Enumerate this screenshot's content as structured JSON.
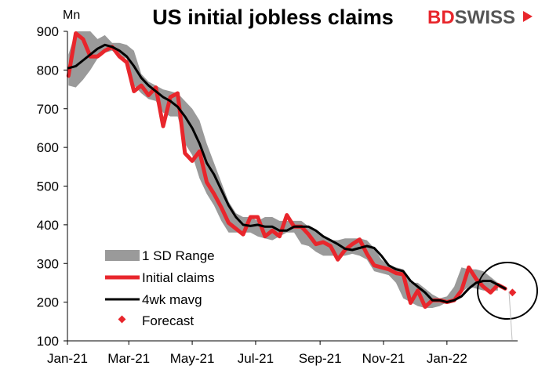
{
  "brand": {
    "part1": "BD",
    "part2": "SWISS",
    "color": "#e8262c"
  },
  "chart_data": {
    "type": "line",
    "title": "US initial jobless claims",
    "ylabel": "Mn",
    "ylim": [
      100,
      900
    ],
    "yticks": [
      100,
      200,
      300,
      400,
      500,
      600,
      700,
      800,
      900
    ],
    "xlim": [
      "2021-01-01",
      "2022-03-10"
    ],
    "xticks": [
      {
        "date": "2021-01-01",
        "label": "Jan-21"
      },
      {
        "date": "2021-03-01",
        "label": "Mar-21"
      },
      {
        "date": "2021-05-01",
        "label": "May-21"
      },
      {
        "date": "2021-07-01",
        "label": "Jul-21"
      },
      {
        "date": "2021-09-01",
        "label": "Sep-21"
      },
      {
        "date": "2021-11-01",
        "label": "Nov-21"
      },
      {
        "date": "2022-01-01",
        "label": "Jan-22"
      }
    ],
    "grid": false,
    "legend_position": "bottom-left",
    "colors": {
      "range": "#9a9a9a",
      "claims": "#e8262c",
      "mavg": "#000000",
      "forecast": "#e8262c"
    },
    "series": [
      {
        "name": "1 SD Range",
        "kind": "band",
        "points": [
          [
            "2021-01-02",
            760,
            840
          ],
          [
            "2021-01-09",
            755,
            900
          ],
          [
            "2021-01-16",
            775,
            900
          ],
          [
            "2021-01-23",
            800,
            900
          ],
          [
            "2021-01-30",
            830,
            880
          ],
          [
            "2021-02-06",
            845,
            890
          ],
          [
            "2021-02-13",
            850,
            870
          ],
          [
            "2021-02-20",
            835,
            870
          ],
          [
            "2021-02-27",
            830,
            865
          ],
          [
            "2021-03-06",
            760,
            850
          ],
          [
            "2021-03-13",
            740,
            790
          ],
          [
            "2021-03-20",
            725,
            770
          ],
          [
            "2021-03-27",
            720,
            760
          ],
          [
            "2021-04-03",
            690,
            750
          ],
          [
            "2021-04-10",
            680,
            745
          ],
          [
            "2021-04-17",
            680,
            740
          ],
          [
            "2021-04-24",
            610,
            720
          ],
          [
            "2021-05-01",
            580,
            700
          ],
          [
            "2021-05-08",
            520,
            670
          ],
          [
            "2021-05-15",
            480,
            610
          ],
          [
            "2021-05-22",
            450,
            560
          ],
          [
            "2021-05-29",
            410,
            510
          ],
          [
            "2021-06-05",
            380,
            460
          ],
          [
            "2021-06-12",
            380,
            430
          ],
          [
            "2021-06-19",
            380,
            420
          ],
          [
            "2021-06-26",
            380,
            420
          ],
          [
            "2021-07-03",
            370,
            410
          ],
          [
            "2021-07-10",
            365,
            420
          ],
          [
            "2021-07-17",
            360,
            420
          ],
          [
            "2021-07-24",
            370,
            410
          ],
          [
            "2021-07-31",
            380,
            410
          ],
          [
            "2021-08-07",
            380,
            410
          ],
          [
            "2021-08-14",
            350,
            410
          ],
          [
            "2021-08-21",
            345,
            395
          ],
          [
            "2021-08-28",
            330,
            385
          ],
          [
            "2021-09-04",
            320,
            370
          ],
          [
            "2021-09-11",
            320,
            360
          ],
          [
            "2021-09-18",
            320,
            360
          ],
          [
            "2021-09-25",
            320,
            365
          ],
          [
            "2021-10-02",
            325,
            365
          ],
          [
            "2021-10-09",
            320,
            365
          ],
          [
            "2021-10-16",
            310,
            360
          ],
          [
            "2021-10-23",
            280,
            340
          ],
          [
            "2021-10-30",
            275,
            310
          ],
          [
            "2021-11-06",
            270,
            295
          ],
          [
            "2021-11-13",
            250,
            290
          ],
          [
            "2021-11-20",
            210,
            285
          ],
          [
            "2021-11-27",
            200,
            250
          ],
          [
            "2021-12-04",
            190,
            250
          ],
          [
            "2021-12-11",
            185,
            235
          ],
          [
            "2021-12-18",
            185,
            220
          ],
          [
            "2021-12-25",
            190,
            210
          ],
          [
            "2022-01-01",
            200,
            215
          ],
          [
            "2022-01-08",
            205,
            240
          ],
          [
            "2022-01-15",
            225,
            290
          ],
          [
            "2022-01-22",
            240,
            285
          ],
          [
            "2022-01-29",
            235,
            285
          ],
          [
            "2022-02-05",
            230,
            280
          ],
          [
            "2022-02-12",
            230,
            265
          ],
          [
            "2022-02-19",
            230,
            250
          ]
        ]
      },
      {
        "name": "Initial claims",
        "kind": "line",
        "points": [
          [
            "2021-01-02",
            785
          ],
          [
            "2021-01-09",
            895
          ],
          [
            "2021-01-16",
            880
          ],
          [
            "2021-01-23",
            835
          ],
          [
            "2021-01-30",
            835
          ],
          [
            "2021-02-06",
            850
          ],
          [
            "2021-02-13",
            860
          ],
          [
            "2021-02-20",
            835
          ],
          [
            "2021-02-27",
            820
          ],
          [
            "2021-03-06",
            745
          ],
          [
            "2021-03-13",
            760
          ],
          [
            "2021-03-20",
            735
          ],
          [
            "2021-03-27",
            755
          ],
          [
            "2021-04-03",
            655
          ],
          [
            "2021-04-10",
            730
          ],
          [
            "2021-04-17",
            740
          ],
          [
            "2021-04-24",
            585
          ],
          [
            "2021-05-01",
            565
          ],
          [
            "2021-05-08",
            590
          ],
          [
            "2021-05-15",
            510
          ],
          [
            "2021-05-22",
            480
          ],
          [
            "2021-05-29",
            445
          ],
          [
            "2021-06-05",
            405
          ],
          [
            "2021-06-12",
            390
          ],
          [
            "2021-06-19",
            375
          ],
          [
            "2021-06-26",
            420
          ],
          [
            "2021-07-03",
            420
          ],
          [
            "2021-07-10",
            370
          ],
          [
            "2021-07-17",
            385
          ],
          [
            "2021-07-24",
            370
          ],
          [
            "2021-07-31",
            425
          ],
          [
            "2021-08-07",
            395
          ],
          [
            "2021-08-14",
            395
          ],
          [
            "2021-08-21",
            375
          ],
          [
            "2021-08-28",
            350
          ],
          [
            "2021-09-04",
            355
          ],
          [
            "2021-09-11",
            345
          ],
          [
            "2021-09-18",
            310
          ],
          [
            "2021-09-25",
            335
          ],
          [
            "2021-10-02",
            350
          ],
          [
            "2021-10-09",
            362
          ],
          [
            "2021-10-16",
            325
          ],
          [
            "2021-10-23",
            295
          ],
          [
            "2021-10-30",
            290
          ],
          [
            "2021-11-06",
            285
          ],
          [
            "2021-11-13",
            275
          ],
          [
            "2021-11-20",
            272
          ],
          [
            "2021-11-27",
            198
          ],
          [
            "2021-12-04",
            230
          ],
          [
            "2021-12-11",
            188
          ],
          [
            "2021-12-18",
            205
          ],
          [
            "2021-12-25",
            205
          ],
          [
            "2022-01-01",
            200
          ],
          [
            "2022-01-08",
            205
          ],
          [
            "2022-01-15",
            230
          ],
          [
            "2022-01-22",
            290
          ],
          [
            "2022-01-29",
            260
          ],
          [
            "2022-02-05",
            240
          ],
          [
            "2022-02-12",
            225
          ],
          [
            "2022-02-19",
            245
          ],
          [
            "2022-02-26",
            235
          ]
        ]
      },
      {
        "name": "4wk mavg",
        "kind": "line",
        "points": [
          [
            "2021-01-02",
            805
          ],
          [
            "2021-01-09",
            810
          ],
          [
            "2021-01-16",
            825
          ],
          [
            "2021-01-23",
            840
          ],
          [
            "2021-01-30",
            855
          ],
          [
            "2021-02-06",
            865
          ],
          [
            "2021-02-13",
            860
          ],
          [
            "2021-02-20",
            850
          ],
          [
            "2021-02-27",
            835
          ],
          [
            "2021-03-06",
            810
          ],
          [
            "2021-03-13",
            780
          ],
          [
            "2021-03-20",
            760
          ],
          [
            "2021-03-27",
            745
          ],
          [
            "2021-04-03",
            730
          ],
          [
            "2021-04-10",
            720
          ],
          [
            "2021-04-17",
            705
          ],
          [
            "2021-04-24",
            680
          ],
          [
            "2021-05-01",
            650
          ],
          [
            "2021-05-08",
            610
          ],
          [
            "2021-05-15",
            560
          ],
          [
            "2021-05-22",
            530
          ],
          [
            "2021-05-29",
            490
          ],
          [
            "2021-06-05",
            450
          ],
          [
            "2021-06-12",
            420
          ],
          [
            "2021-06-19",
            400
          ],
          [
            "2021-06-26",
            397
          ],
          [
            "2021-07-03",
            400
          ],
          [
            "2021-07-10",
            395
          ],
          [
            "2021-07-17",
            395
          ],
          [
            "2021-07-24",
            385
          ],
          [
            "2021-07-31",
            385
          ],
          [
            "2021-08-07",
            395
          ],
          [
            "2021-08-14",
            395
          ],
          [
            "2021-08-21",
            395
          ],
          [
            "2021-08-28",
            385
          ],
          [
            "2021-09-04",
            370
          ],
          [
            "2021-09-11",
            360
          ],
          [
            "2021-09-18",
            350
          ],
          [
            "2021-09-25",
            338
          ],
          [
            "2021-10-02",
            335
          ],
          [
            "2021-10-09",
            340
          ],
          [
            "2021-10-16",
            345
          ],
          [
            "2021-10-23",
            340
          ],
          [
            "2021-10-30",
            320
          ],
          [
            "2021-11-06",
            295
          ],
          [
            "2021-11-13",
            285
          ],
          [
            "2021-11-20",
            280
          ],
          [
            "2021-11-27",
            255
          ],
          [
            "2021-12-04",
            240
          ],
          [
            "2021-12-11",
            225
          ],
          [
            "2021-12-18",
            205
          ],
          [
            "2021-12-25",
            205
          ],
          [
            "2022-01-01",
            200
          ],
          [
            "2022-01-08",
            205
          ],
          [
            "2022-01-15",
            215
          ],
          [
            "2022-01-22",
            235
          ],
          [
            "2022-01-29",
            250
          ],
          [
            "2022-02-05",
            255
          ],
          [
            "2022-02-12",
            255
          ],
          [
            "2022-02-19",
            245
          ],
          [
            "2022-02-26",
            235
          ]
        ]
      },
      {
        "name": "Forecast",
        "kind": "marker",
        "points": [
          [
            "2022-03-05",
            225
          ]
        ]
      }
    ]
  }
}
